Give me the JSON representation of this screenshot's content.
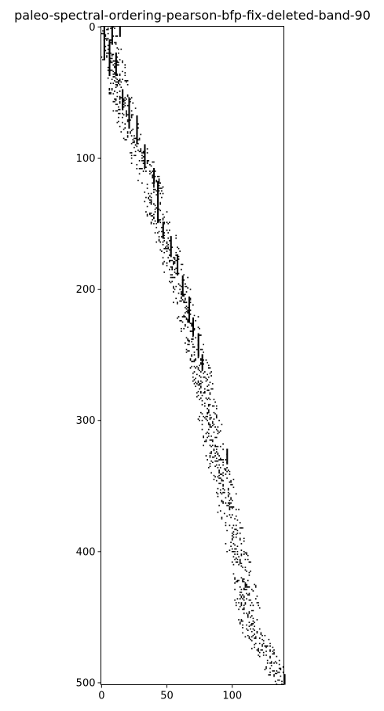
{
  "chart_data": {
    "type": "heatmap",
    "title": "paleo-spectral-ordering-pearson-bfp-fix-deleted-band-90",
    "xlabel": "",
    "ylabel": "",
    "xlim": [
      0,
      140
    ],
    "ylim": [
      0,
      502
    ],
    "y_inverted": true,
    "grid": false,
    "legend": "none",
    "colormap": "binary",
    "x_ticks": [
      0,
      50,
      100
    ],
    "y_ticks": [
      0,
      100,
      200,
      300,
      400,
      500
    ],
    "x_tick_labels": [
      "0",
      "50",
      "100"
    ],
    "y_tick_labels": [
      "0",
      "100",
      "200",
      "300",
      "400",
      "500"
    ],
    "band_path": [
      [
        0,
        2
      ],
      [
        20,
        7
      ],
      [
        50,
        14
      ],
      [
        80,
        22
      ],
      [
        100,
        30
      ],
      [
        120,
        38
      ],
      [
        150,
        45
      ],
      [
        170,
        52
      ],
      [
        200,
        60
      ],
      [
        230,
        68
      ],
      [
        260,
        75
      ],
      [
        300,
        83
      ],
      [
        340,
        91
      ],
      [
        380,
        100
      ],
      [
        420,
        108
      ],
      [
        460,
        115
      ],
      [
        502,
        140
      ]
    ],
    "band_half_width": 8,
    "cell_density": 0.22,
    "solid_columns": [
      {
        "x": 2,
        "y0": 0,
        "y1": 26
      },
      {
        "x": 6,
        "y0": 10,
        "y1": 38
      },
      {
        "x": 8,
        "y0": 0,
        "y1": 14
      },
      {
        "x": 11,
        "y0": 20,
        "y1": 38
      },
      {
        "x": 14,
        "y0": 0,
        "y1": 8
      },
      {
        "x": 16,
        "y0": 48,
        "y1": 64
      },
      {
        "x": 21,
        "y0": 55,
        "y1": 78
      },
      {
        "x": 27,
        "y0": 68,
        "y1": 90
      },
      {
        "x": 33,
        "y0": 90,
        "y1": 108
      },
      {
        "x": 40,
        "y0": 108,
        "y1": 120
      },
      {
        "x": 43,
        "y0": 118,
        "y1": 150
      },
      {
        "x": 47,
        "y0": 150,
        "y1": 162
      },
      {
        "x": 53,
        "y0": 160,
        "y1": 176
      },
      {
        "x": 58,
        "y0": 174,
        "y1": 190
      },
      {
        "x": 62,
        "y0": 190,
        "y1": 206
      },
      {
        "x": 67,
        "y0": 206,
        "y1": 226
      },
      {
        "x": 70,
        "y0": 222,
        "y1": 236
      },
      {
        "x": 74,
        "y0": 234,
        "y1": 252
      },
      {
        "x": 77,
        "y0": 250,
        "y1": 262
      },
      {
        "x": 96,
        "y0": 322,
        "y1": 334
      },
      {
        "x": 140,
        "y0": 494,
        "y1": 502
      }
    ]
  }
}
